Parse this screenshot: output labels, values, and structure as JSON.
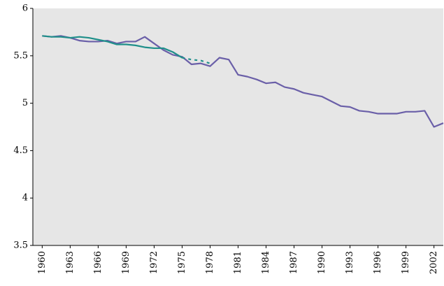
{
  "chart_data": {
    "type": "line",
    "x": [
      1960,
      1961,
      1962,
      1963,
      1964,
      1965,
      1966,
      1967,
      1968,
      1969,
      1970,
      1971,
      1972,
      1973,
      1974,
      1975,
      1976,
      1977,
      1978,
      1979,
      1980,
      1981,
      1982,
      1983,
      1984,
      1985,
      1986,
      1987,
      1988,
      1989,
      1990,
      1991,
      1992,
      1993,
      1994,
      1995,
      1996,
      1997,
      1998,
      1999,
      2000,
      2001,
      2002,
      2003
    ],
    "xlim": [
      1959,
      2003
    ],
    "xticks": [
      1960,
      1963,
      1966,
      1969,
      1972,
      1975,
      1978,
      1981,
      1984,
      1987,
      1990,
      1993,
      1996,
      1999,
      2002
    ],
    "ylim": [
      3.5,
      6
    ],
    "yticks": [
      3.5,
      4,
      4.5,
      5,
      5.5,
      6
    ],
    "series": [
      {
        "color": "#6a5fa8",
        "dash": false,
        "values": [
          5.71,
          5.7,
          5.71,
          5.69,
          5.66,
          5.65,
          5.65,
          5.66,
          5.63,
          5.65,
          5.65,
          5.7,
          5.63,
          5.56,
          5.51,
          5.49,
          5.41,
          5.42,
          5.39,
          5.48,
          5.46,
          5.3,
          5.28,
          5.25,
          5.21,
          5.22,
          5.17,
          5.15,
          5.11,
          5.09,
          5.07,
          5.02,
          4.97,
          4.96,
          4.92,
          4.91,
          4.89,
          4.89,
          4.89,
          4.91,
          4.91,
          4.92,
          4.75,
          4.79
        ]
      },
      {
        "color": "#1f8f8a",
        "dash": false,
        "values": [
          5.71,
          5.7,
          5.7,
          5.69,
          5.7,
          5.69,
          5.67,
          5.65,
          5.62,
          5.62,
          5.61,
          5.59,
          5.58,
          5.58,
          5.54,
          5.48,
          null,
          null,
          null,
          null,
          null,
          null,
          null,
          null,
          null,
          null,
          null,
          null,
          null,
          null,
          null,
          null,
          null,
          null,
          null,
          null,
          null,
          null,
          null,
          null,
          null,
          null,
          null,
          null
        ]
      },
      {
        "color": "#1f8f8a",
        "dash": true,
        "values": [
          null,
          null,
          null,
          null,
          null,
          null,
          null,
          null,
          null,
          null,
          null,
          null,
          null,
          null,
          null,
          5.48,
          5.46,
          5.45,
          5.42,
          null,
          null,
          null,
          null,
          null,
          null,
          null,
          null,
          null,
          null,
          null,
          null,
          null,
          null,
          null,
          null,
          null,
          null,
          null,
          null,
          null,
          null,
          null,
          null,
          null
        ]
      }
    ]
  }
}
